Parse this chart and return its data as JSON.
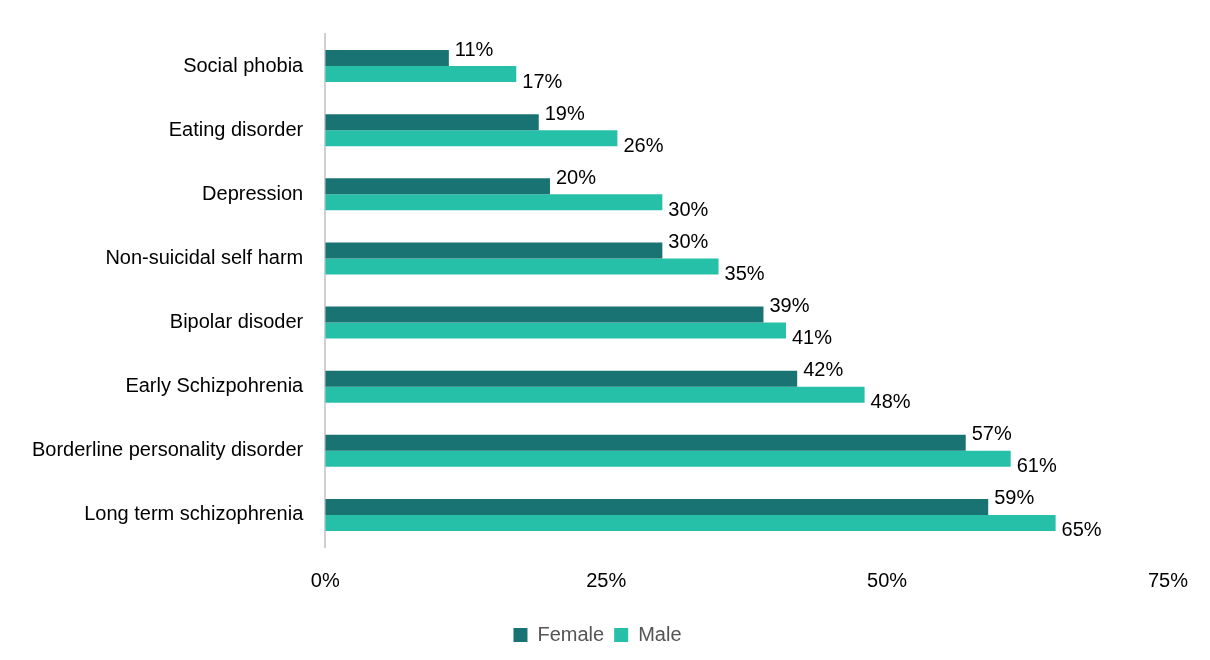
{
  "chart_data": {
    "type": "bar",
    "orientation": "horizontal",
    "categories": [
      "Social phobia",
      "Eating disorder",
      "Depression",
      "Non-suicidal self harm",
      "Bipolar disoder",
      "Early Schizpohrenia",
      "Borderline personality disorder",
      "Long term schizophrenia"
    ],
    "series": [
      {
        "name": "Female",
        "color": "#1a7373",
        "values": [
          11,
          19,
          20,
          30,
          39,
          42,
          57,
          59
        ],
        "value_labels": [
          "11%",
          "19%",
          "20%",
          "30%",
          "39%",
          "42%",
          "57%",
          "59%"
        ]
      },
      {
        "name": "Male",
        "color": "#26bfa8",
        "values": [
          17,
          26,
          30,
          35,
          41,
          48,
          61,
          65
        ],
        "value_labels": [
          "17%",
          "26%",
          "30%",
          "35%",
          "41%",
          "48%",
          "61%",
          "65%"
        ]
      }
    ],
    "xlim": [
      0,
      75
    ],
    "xticks": [
      {
        "value": 0,
        "label": "0%"
      },
      {
        "value": 25,
        "label": "25%"
      },
      {
        "value": 50,
        "label": "50%"
      },
      {
        "value": 75,
        "label": "75%"
      }
    ],
    "grid": false,
    "legend": "bottom"
  }
}
